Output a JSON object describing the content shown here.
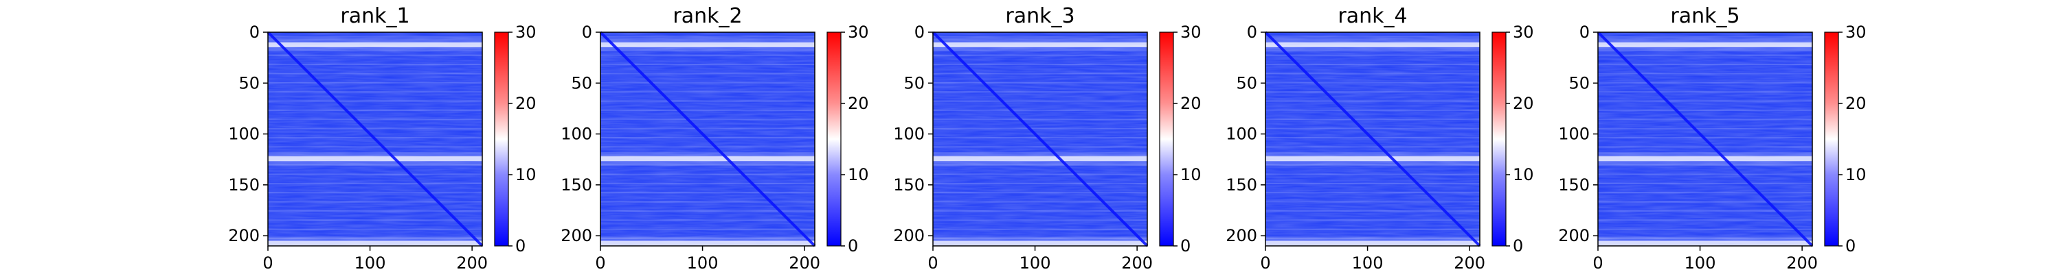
{
  "chart_data": [
    {
      "type": "heatmap",
      "title": "rank_1",
      "xlim": [
        0,
        210
      ],
      "ylim": [
        210,
        0
      ],
      "x_ticks": [
        "0",
        "100",
        "200"
      ],
      "y_ticks": [
        "0",
        "50",
        "100",
        "150",
        "200"
      ],
      "colorbar": {
        "range": [
          0,
          30
        ],
        "ticks": [
          "0",
          "10",
          "20",
          "30"
        ],
        "colormap": "bwr"
      },
      "bright_rows": [
        12,
        124,
        207
      ],
      "values": "pairwise distance-like matrix, mostly low (approx 2-8), bright horizontal bands near rows 12 and 124, diagonal near 0"
    },
    {
      "type": "heatmap",
      "title": "rank_2",
      "xlim": [
        0,
        210
      ],
      "ylim": [
        210,
        0
      ],
      "x_ticks": [
        "0",
        "100",
        "200"
      ],
      "y_ticks": [
        "0",
        "50",
        "100",
        "150",
        "200"
      ],
      "colorbar": {
        "range": [
          0,
          30
        ],
        "ticks": [
          "0",
          "10",
          "20",
          "30"
        ],
        "colormap": "bwr"
      },
      "bright_rows": [
        12,
        124,
        207
      ],
      "values": "similar pattern to rank_1"
    },
    {
      "type": "heatmap",
      "title": "rank_3",
      "xlim": [
        0,
        210
      ],
      "ylim": [
        210,
        0
      ],
      "x_ticks": [
        "0",
        "100",
        "200"
      ],
      "y_ticks": [
        "0",
        "50",
        "100",
        "150",
        "200"
      ],
      "colorbar": {
        "range": [
          0,
          30
        ],
        "ticks": [
          "0",
          "10",
          "20",
          "30"
        ],
        "colormap": "bwr"
      },
      "bright_rows": [
        12,
        124,
        207
      ],
      "values": "similar pattern to rank_1"
    },
    {
      "type": "heatmap",
      "title": "rank_4",
      "xlim": [
        0,
        210
      ],
      "ylim": [
        210,
        0
      ],
      "x_ticks": [
        "0",
        "100",
        "200"
      ],
      "y_ticks": [
        "0",
        "50",
        "100",
        "150",
        "200"
      ],
      "colorbar": {
        "range": [
          0,
          30
        ],
        "ticks": [
          "0",
          "10",
          "20",
          "30"
        ],
        "colormap": "bwr"
      },
      "bright_rows": [
        12,
        124,
        207
      ],
      "values": "similar pattern to rank_1"
    },
    {
      "type": "heatmap",
      "title": "rank_5",
      "xlim": [
        0,
        210
      ],
      "ylim": [
        210,
        0
      ],
      "x_ticks": [
        "0",
        "100",
        "200"
      ],
      "y_ticks": [
        "0",
        "50",
        "100",
        "150",
        "200"
      ],
      "colorbar": {
        "range": [
          0,
          30
        ],
        "ticks": [
          "0",
          "10",
          "20",
          "30"
        ],
        "colormap": "bwr"
      },
      "bright_rows": [
        12,
        124,
        207
      ],
      "values": "similar pattern to rank_1"
    }
  ],
  "colors": {
    "low": "#0000ff",
    "mid": "#ffffff",
    "high": "#ff0000",
    "heatmap_base": "#1f3cf5",
    "axis": "#000000"
  }
}
